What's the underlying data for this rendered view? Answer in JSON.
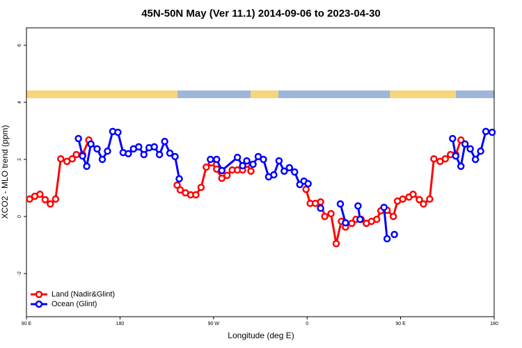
{
  "chart_data": {
    "type": "line",
    "title": "45N-50N May (Ver 11.1)   2014-09-06 to 2023-04-30",
    "x_label": "Longitude (deg E)",
    "y_label": "XCO2 - MLO trend (ppm)",
    "xlim": [
      90,
      540
    ],
    "xticks": [
      {
        "value": 90,
        "label": "90 E"
      },
      180,
      {
        "value": 270,
        "label": "90 W"
      },
      {
        "value": 360,
        "label": "0"
      },
      {
        "value": 450,
        "label": "90 E"
      },
      {
        "value": 540,
        "label": "180"
      }
    ],
    "ylim": [
      -3.51,
      6.61
    ],
    "yticks": [
      -2,
      0,
      2,
      4,
      6
    ],
    "legend": "bottom-left",
    "series": [
      {
        "name": "Land (Nadir&Glint)",
        "color": "#ff0000",
        "x": [
          93,
          98,
          103,
          108,
          113,
          118,
          123,
          129,
          134,
          138,
          144,
          150,
          null,
          235,
          238,
          243,
          248,
          253,
          258,
          263,
          268,
          273,
          278,
          283,
          288,
          293,
          298,
          302,
          306,
          null,
          359,
          363,
          368,
          373,
          377,
          383,
          388,
          393,
          397,
          403,
          407,
          412,
          417,
          422,
          427,
          431,
          437,
          443,
          447,
          452,
          458,
          462,
          468,
          472,
          478,
          482,
          488,
          493,
          498,
          503,
          508
        ],
        "values": [
          0.61,
          0.71,
          0.78,
          0.59,
          0.44,
          0.61,
          2.02,
          1.93,
          2.02,
          2.17,
          2.17,
          2.68,
          null,
          1.1,
          0.93,
          0.83,
          0.76,
          0.76,
          1.02,
          1.73,
          1.88,
          1.66,
          1.34,
          1.44,
          1.63,
          1.63,
          1.63,
          1.83,
          1.59,
          null,
          0.95,
          0.46,
          0.46,
          0.51,
          0,
          0.1,
          -0.95,
          -0.17,
          -0.37,
          -0.24,
          -0.1,
          -0.1,
          -0.24,
          -0.17,
          -0.1,
          0.2,
          0.22,
          0,
          0.54,
          0.61,
          0.68,
          0.78,
          0.59,
          0.44,
          0.61,
          2.02,
          1.93,
          2.02,
          2.17,
          2.17,
          2.68
        ]
      },
      {
        "name": "Ocean (Glint)",
        "color": "#0000ff",
        "x": [
          140,
          144,
          148,
          152,
          158,
          163,
          168,
          173,
          178,
          183,
          188,
          193,
          198,
          203,
          208,
          213,
          218,
          223,
          228,
          233,
          237,
          null,
          267,
          273,
          278,
          293,
          298,
          302,
          308,
          313,
          318,
          323,
          328,
          333,
          338,
          343,
          348,
          353,
          357,
          361,
          null,
          373,
          null,
          392,
          397,
          null,
          409,
          411,
          null,
          434,
          437,
          null,
          444,
          null,
          500,
          503,
          508,
          512,
          517,
          522,
          527,
          532,
          538
        ],
        "values": [
          2.73,
          2.12,
          1.76,
          2.54,
          2.37,
          2.0,
          2.29,
          2.98,
          2.95,
          2.24,
          2.2,
          2.37,
          2.44,
          2.17,
          2.41,
          2.44,
          2.17,
          2.63,
          2.22,
          2.1,
          1.32,
          null,
          2.0,
          2.0,
          1.61,
          2.07,
          1.78,
          1.95,
          1.83,
          2.1,
          2.0,
          1.39,
          1.46,
          1.95,
          1.59,
          1.71,
          1.56,
          1.12,
          1.24,
          1.15,
          null,
          0.29,
          null,
          0.44,
          -0.22,
          null,
          0.37,
          -0.1,
          null,
          0.32,
          -0.78,
          null,
          -0.63,
          null,
          2.73,
          2.12,
          1.76,
          2.54,
          2.37,
          2.0,
          2.29,
          2.98,
          2.95
        ]
      }
    ]
  }
}
